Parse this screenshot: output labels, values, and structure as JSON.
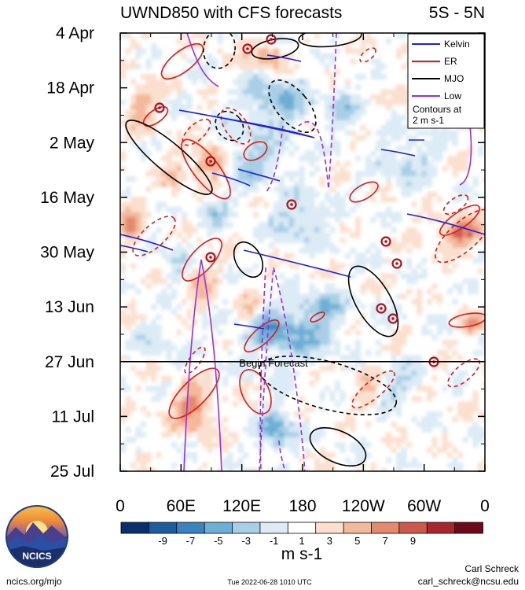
{
  "header": {
    "title": "UWND850 with CFS forecasts",
    "region": "5S - 5N"
  },
  "chart_data": {
    "type": "heatmap",
    "variable": "UWND850",
    "y_ticks": [
      "4 Apr",
      "18 Apr",
      "2 May",
      "16 May",
      "30 May",
      "13 Jun",
      "27 Jun",
      "11 Jul",
      "25 Jul"
    ],
    "x_ticks": [
      "0",
      "60E",
      "120E",
      "180",
      "120W",
      "60W",
      "0"
    ],
    "x_range_deg": [
      0,
      360
    ],
    "forecast_line_label": "Begin Forecast",
    "forecast_start": "27 Jun",
    "legend": {
      "position": "top-right",
      "entries": [
        {
          "name": "Kelvin",
          "color": "#1f1fe0"
        },
        {
          "name": "ER",
          "color": "#e01a1a"
        },
        {
          "name": "MJO",
          "color": "#000000"
        },
        {
          "name": "Low",
          "color": "#9b30e0"
        }
      ],
      "note_line1": "Contours at",
      "note_line2": "2 m s-1"
    },
    "colorbar": {
      "labels": [
        "-9",
        "-7",
        "-5",
        "-3",
        "-1",
        "1",
        "3",
        "5",
        "7",
        "9"
      ],
      "colors": [
        "#08306b",
        "#1f5c9e",
        "#3a83bf",
        "#6daed4",
        "#a8cfe6",
        "#dcebf5",
        "#ffffff",
        "#fbe0cf",
        "#f4b89a",
        "#e38a6f",
        "#cc5a4c",
        "#a8262e",
        "#6e0a18"
      ],
      "units": "m s-1"
    }
  },
  "footer": {
    "logo_text": "NCICS",
    "site": "ncics.org/mjo",
    "timestamp": "Tue 2022-06-28 1010 UTC",
    "author": "Carl Schreck",
    "email": "carl_schreck@ncsu.edu"
  }
}
